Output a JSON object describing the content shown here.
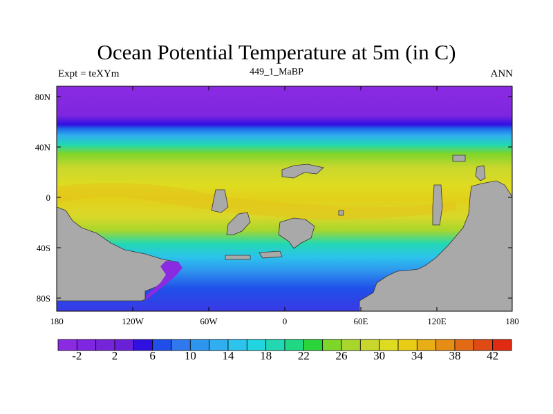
{
  "map": {
    "title": "Ocean Potential Temperature at 5m (in C)",
    "left_string": "Expt = teXYm",
    "center_string": "449_1_MaBP",
    "right_string": "ANN",
    "lat_labels": [
      "80N",
      "40N",
      "0",
      "40S",
      "80S"
    ],
    "lon_labels": [
      "180",
      "120W",
      "60W",
      "0",
      "60E",
      "120E",
      "180"
    ],
    "colors": {
      "land": "#a9a9a9",
      "frame": "#000000"
    }
  },
  "colorbar": {
    "labels": [
      "-2",
      "2",
      "6",
      "10",
      "14",
      "18",
      "22",
      "26",
      "30",
      "34",
      "38",
      "42"
    ],
    "colors": [
      "#8a2be2",
      "#7f26e0",
      "#7524d9",
      "#6a20d8",
      "#3010e0",
      "#1f4fe8",
      "#2f78ee",
      "#2e95ee",
      "#31aeef",
      "#2cc3ec",
      "#22d3e0",
      "#22d8b3",
      "#20d884",
      "#2bd43b",
      "#7fd62a",
      "#a9d62c",
      "#c9d72d",
      "#dedc21",
      "#e9cc15",
      "#e8ae15",
      "#e58d15",
      "#e26a15",
      "#df4a15",
      "#e12a12"
    ]
  }
}
